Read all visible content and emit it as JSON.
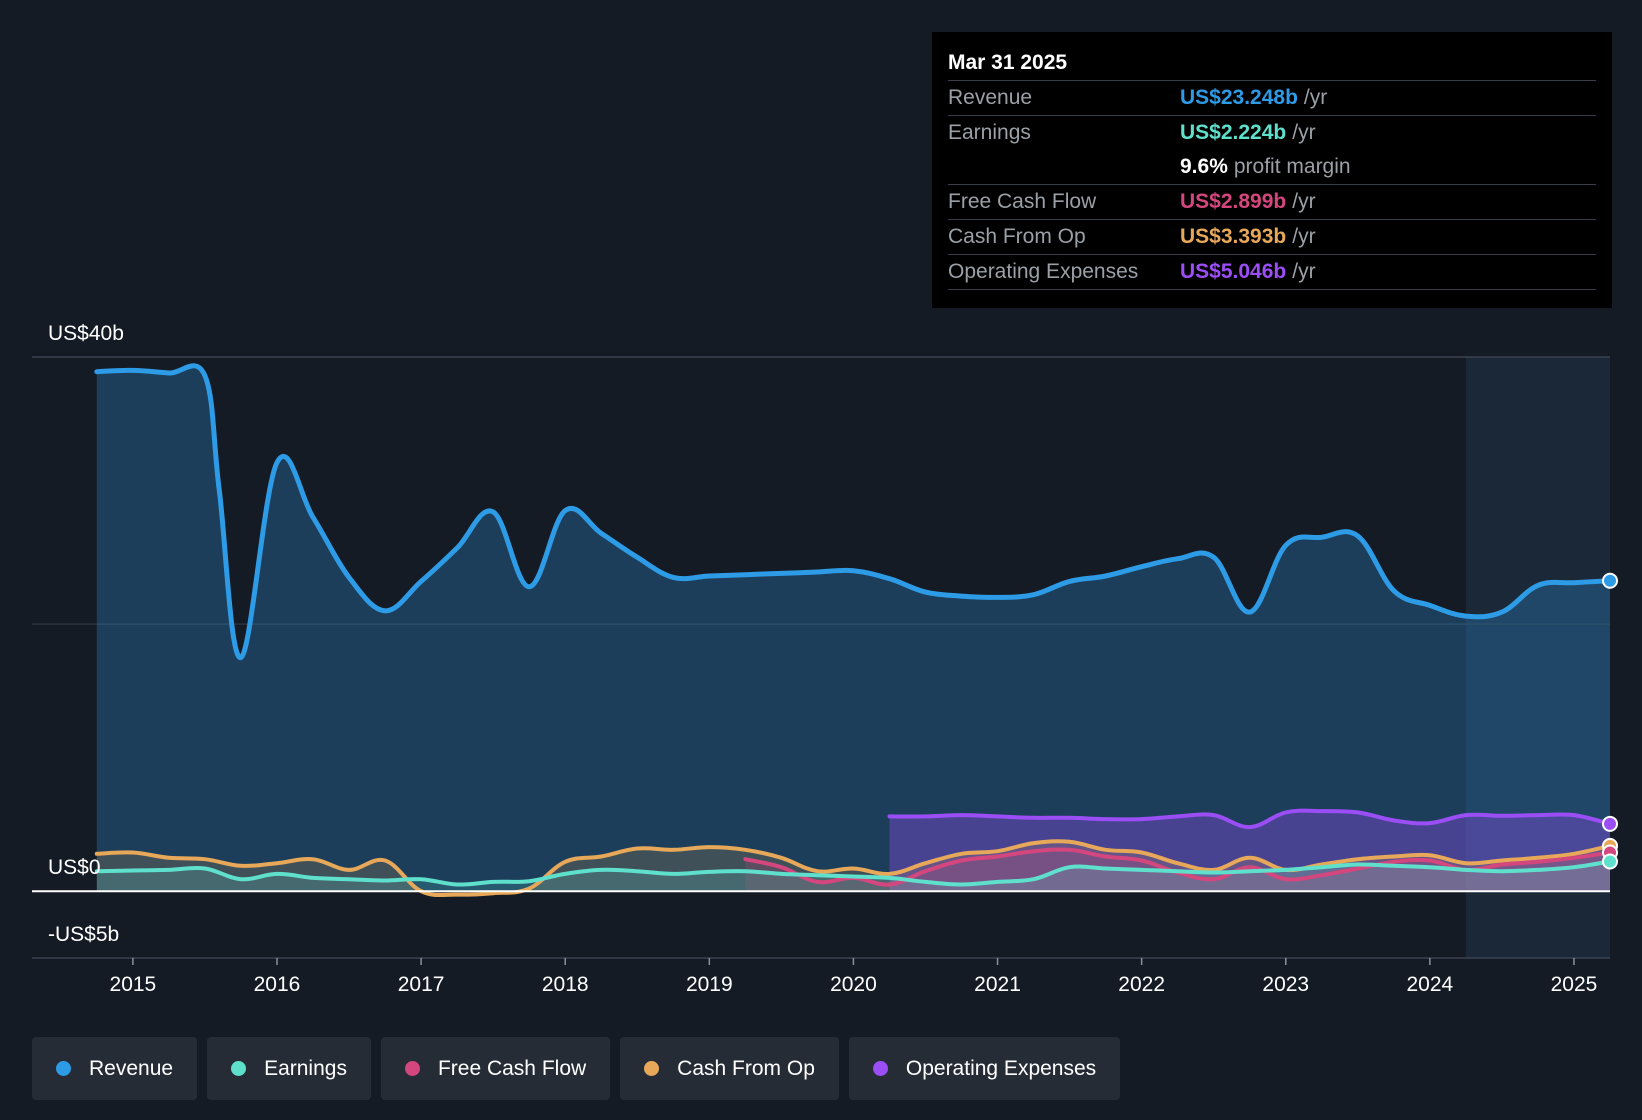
{
  "colors": {
    "revenue": "#2d9be6",
    "earnings": "#5fe0cd",
    "free_cash_flow": "#d4467e",
    "cash_from_op": "#e7a85a",
    "operating_expenses": "#9b4ef5",
    "background": "#151b24"
  },
  "tooltip": {
    "date": "Mar 31 2025",
    "rows": [
      {
        "label": "Revenue",
        "value": "US$23.248b",
        "unit": "/yr",
        "color": "#2d9be6"
      },
      {
        "label": "Earnings",
        "value": "US$2.224b",
        "unit": "/yr",
        "color": "#5fe0cd"
      },
      {
        "label": "",
        "value": "9.6%",
        "unit": "profit margin",
        "color": "#ffffff"
      },
      {
        "label": "Free Cash Flow",
        "value": "US$2.899b",
        "unit": "/yr",
        "color": "#d4467e"
      },
      {
        "label": "Cash From Op",
        "value": "US$3.393b",
        "unit": "/yr",
        "color": "#e7a85a"
      },
      {
        "label": "Operating Expenses",
        "value": "US$5.046b",
        "unit": "/yr",
        "color": "#9b4ef5"
      }
    ]
  },
  "legend": [
    {
      "label": "Revenue",
      "color": "#2d9be6"
    },
    {
      "label": "Earnings",
      "color": "#5fe0cd"
    },
    {
      "label": "Free Cash Flow",
      "color": "#d4467e"
    },
    {
      "label": "Cash From Op",
      "color": "#e7a85a"
    },
    {
      "label": "Operating Expenses",
      "color": "#9b4ef5"
    }
  ],
  "chart_data": {
    "type": "area",
    "title": "",
    "xlabel": "",
    "ylabel": "",
    "y_tick_labels": [
      "US$40b",
      "US$0",
      "-US$5b"
    ],
    "x_tick_labels": [
      "2015",
      "2016",
      "2017",
      "2018",
      "2019",
      "2020",
      "2021",
      "2022",
      "2023",
      "2024",
      "2025"
    ],
    "x_ticks": [
      2015,
      2016,
      2017,
      2018,
      2019,
      2020,
      2021,
      2022,
      2023,
      2024,
      2025
    ],
    "ylim": [
      -5,
      40
    ],
    "xlim": [
      2014.3,
      2025.25
    ],
    "unit": "US$ billions",
    "grid": "horizontal",
    "forecast_shade_start": 2024.25,
    "legend_position": "bottom",
    "series": [
      {
        "name": "Revenue",
        "key": "revenue",
        "x": [
          2014.75,
          2015.0,
          2015.25,
          2015.5,
          2015.6,
          2015.75,
          2016.0,
          2016.25,
          2016.5,
          2016.75,
          2017.0,
          2017.25,
          2017.5,
          2017.75,
          2018.0,
          2018.25,
          2018.5,
          2018.75,
          2019.0,
          2019.25,
          2019.5,
          2019.75,
          2020.0,
          2020.25,
          2020.5,
          2020.75,
          2021.0,
          2021.25,
          2021.5,
          2021.75,
          2022.0,
          2022.25,
          2022.5,
          2022.75,
          2023.0,
          2023.25,
          2023.5,
          2023.75,
          2024.0,
          2024.25,
          2024.5,
          2024.75,
          2025.0,
          2025.25
        ],
        "values": [
          38.9,
          39.0,
          38.8,
          38.6,
          30.0,
          17.5,
          32.1,
          28.0,
          23.5,
          21.0,
          23.2,
          25.7,
          28.4,
          22.8,
          28.5,
          26.8,
          25.0,
          23.5,
          23.6,
          23.7,
          23.8,
          23.9,
          24.0,
          23.4,
          22.4,
          22.1,
          22.0,
          22.2,
          23.2,
          23.6,
          24.3,
          24.9,
          25.0,
          20.9,
          25.9,
          26.5,
          26.6,
          22.5,
          21.4,
          20.6,
          20.9,
          22.9,
          23.1,
          23.248
        ]
      },
      {
        "name": "Earnings",
        "key": "earnings",
        "x": [
          2014.75,
          2015.0,
          2015.25,
          2015.5,
          2015.75,
          2016.0,
          2016.25,
          2016.5,
          2016.75,
          2017.0,
          2017.25,
          2017.5,
          2017.75,
          2018.0,
          2018.25,
          2018.5,
          2018.75,
          2019.0,
          2019.25,
          2019.5,
          2019.75,
          2020.0,
          2020.25,
          2020.5,
          2020.75,
          2021.0,
          2021.25,
          2021.5,
          2021.75,
          2022.0,
          2022.25,
          2022.5,
          2022.75,
          2023.0,
          2023.25,
          2023.5,
          2023.75,
          2024.0,
          2024.25,
          2024.5,
          2024.75,
          2025.0,
          2025.25
        ],
        "values": [
          1.5,
          1.55,
          1.6,
          1.7,
          0.9,
          1.3,
          1.0,
          0.9,
          0.8,
          0.9,
          0.5,
          0.7,
          0.75,
          1.3,
          1.6,
          1.5,
          1.3,
          1.45,
          1.5,
          1.3,
          1.2,
          1.1,
          1.0,
          0.7,
          0.5,
          0.7,
          0.9,
          1.8,
          1.7,
          1.6,
          1.5,
          1.4,
          1.5,
          1.6,
          1.8,
          2.0,
          1.9,
          1.8,
          1.6,
          1.5,
          1.6,
          1.8,
          2.224
        ]
      },
      {
        "name": "Free Cash Flow",
        "key": "free_cash_flow",
        "x": [
          2019.25,
          2019.5,
          2019.75,
          2020.0,
          2020.25,
          2020.5,
          2020.75,
          2021.0,
          2021.25,
          2021.5,
          2021.75,
          2022.0,
          2022.25,
          2022.5,
          2022.75,
          2023.0,
          2023.25,
          2023.5,
          2023.75,
          2024.0,
          2024.25,
          2024.5,
          2024.75,
          2025.0,
          2025.25
        ],
        "values": [
          2.4,
          1.8,
          0.7,
          1.0,
          0.5,
          1.5,
          2.3,
          2.6,
          3.0,
          3.1,
          2.6,
          2.3,
          1.4,
          0.9,
          1.8,
          0.9,
          1.2,
          1.7,
          2.2,
          2.3,
          1.6,
          2.0,
          2.2,
          2.5,
          2.899
        ]
      },
      {
        "name": "Cash From Op",
        "key": "cash_from_op",
        "x": [
          2014.75,
          2015.0,
          2015.25,
          2015.5,
          2015.75,
          2016.0,
          2016.25,
          2016.5,
          2016.75,
          2017.0,
          2017.25,
          2017.5,
          2017.75,
          2018.0,
          2018.25,
          2018.5,
          2018.75,
          2019.0,
          2019.25,
          2019.5,
          2019.75,
          2020.0,
          2020.25,
          2020.5,
          2020.75,
          2021.0,
          2021.25,
          2021.5,
          2021.75,
          2022.0,
          2022.25,
          2022.5,
          2022.75,
          2023.0,
          2023.25,
          2023.5,
          2023.75,
          2024.0,
          2024.25,
          2024.5,
          2024.75,
          2025.0,
          2025.25
        ],
        "values": [
          2.8,
          2.9,
          2.5,
          2.4,
          1.9,
          2.1,
          2.4,
          1.6,
          2.3,
          0.0,
          -0.25,
          -0.15,
          0.2,
          2.2,
          2.6,
          3.2,
          3.1,
          3.3,
          3.1,
          2.5,
          1.5,
          1.7,
          1.3,
          2.1,
          2.8,
          3.0,
          3.6,
          3.7,
          3.1,
          2.9,
          2.1,
          1.6,
          2.5,
          1.6,
          2.0,
          2.4,
          2.6,
          2.7,
          2.1,
          2.3,
          2.5,
          2.8,
          3.393
        ]
      },
      {
        "name": "Operating Expenses",
        "key": "operating_expenses",
        "x": [
          2020.25,
          2020.5,
          2020.75,
          2021.0,
          2021.25,
          2021.5,
          2021.75,
          2022.0,
          2022.25,
          2022.5,
          2022.75,
          2023.0,
          2023.25,
          2023.5,
          2023.75,
          2024.0,
          2024.25,
          2024.5,
          2024.75,
          2025.0,
          2025.25
        ],
        "values": [
          5.6,
          5.6,
          5.7,
          5.6,
          5.5,
          5.5,
          5.4,
          5.4,
          5.6,
          5.7,
          4.8,
          5.9,
          6.0,
          5.9,
          5.3,
          5.1,
          5.7,
          5.65,
          5.7,
          5.7,
          5.046
        ]
      }
    ]
  }
}
